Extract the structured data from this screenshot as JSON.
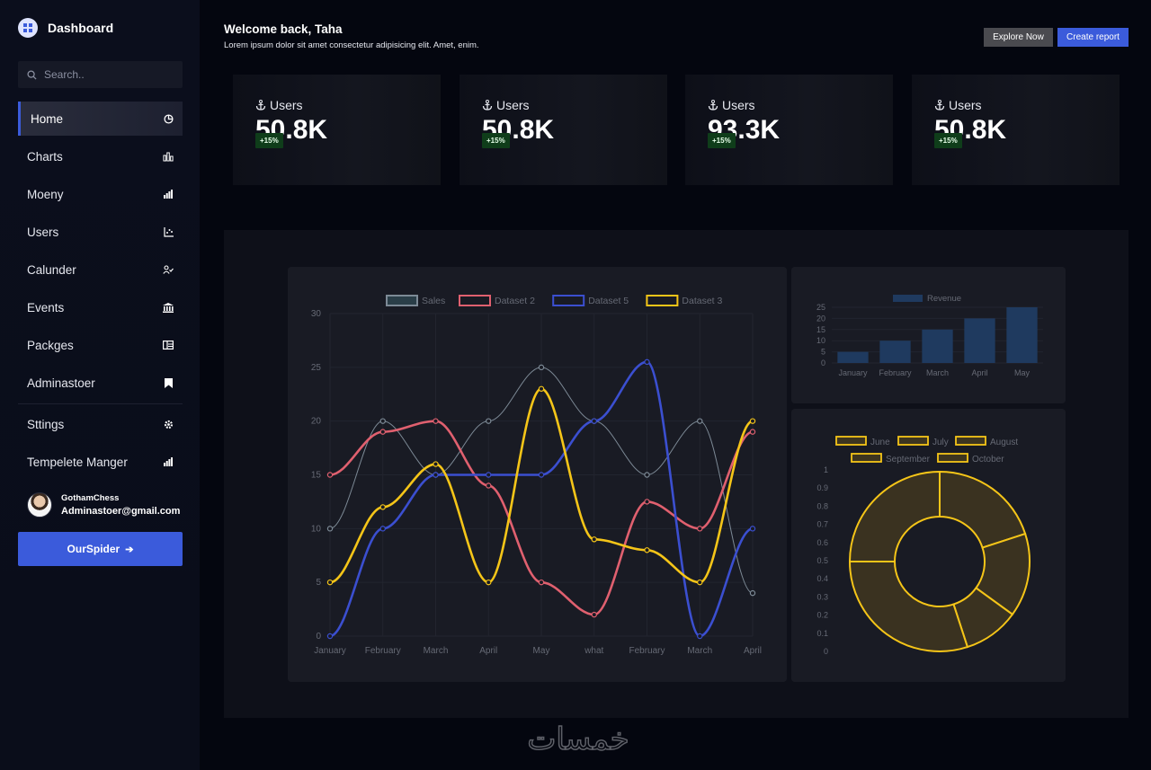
{
  "sidebar": {
    "brand": "Dashboard",
    "search_placeholder": "Search..",
    "items": [
      {
        "label": "Home",
        "icon": "pie-chart-icon"
      },
      {
        "label": "Charts",
        "icon": "bar-chart-icon"
      },
      {
        "label": "Moeny",
        "icon": "signal-bars-icon"
      },
      {
        "label": "Users",
        "icon": "scatter-chart-icon"
      },
      {
        "label": "Calunder",
        "icon": "user-check-icon"
      },
      {
        "label": "Events",
        "icon": "bank-icon"
      },
      {
        "label": "Packges",
        "icon": "table-icon"
      },
      {
        "label": "Adminastoer",
        "icon": "bookmark-icon"
      },
      {
        "label": "Sttings",
        "icon": "gear-icon"
      },
      {
        "label": "Tempelete Manger",
        "icon": "signal-bars-icon"
      }
    ],
    "profile": {
      "name": "GothamChess",
      "email": "Adminastoer@gmail.com"
    },
    "cta_label": "OurSpider"
  },
  "header": {
    "title": "Welcome back, Taha",
    "subtitle": "Lorem ipsum dolor sit amet consectetur adipisicing elit. Amet, enim.",
    "explore_label": "Explore Now",
    "report_label": "Create report"
  },
  "stats": [
    {
      "label": "Users",
      "value": "50.8K",
      "badge": "+15%"
    },
    {
      "label": "Users",
      "value": "50.8K",
      "badge": "+15%"
    },
    {
      "label": "Users",
      "value": "93.3K",
      "badge": "+15%"
    },
    {
      "label": "Users",
      "value": "50.8K",
      "badge": "+15%"
    }
  ],
  "colors": {
    "accent": "#3b5bdb",
    "badge_bg": "#0f3d1a",
    "red": "#e0606f",
    "yellow": "#f5c518",
    "gray": "#7d8a96"
  },
  "watermark": "خمسات",
  "chart_data": [
    {
      "type": "line",
      "categories": [
        "January",
        "February",
        "March",
        "April",
        "May",
        "what",
        "February",
        "March",
        "April"
      ],
      "ylim": [
        0,
        30
      ],
      "yticks": [
        0,
        5,
        10,
        15,
        20,
        25,
        30
      ],
      "legend": "top",
      "series": [
        {
          "name": "Sales",
          "color": "#7d8a96",
          "values": [
            10,
            20,
            15,
            20,
            25,
            20,
            15,
            20,
            4
          ]
        },
        {
          "name": "Dataset 2",
          "color": "#e0606f",
          "values": [
            15,
            19,
            20,
            14,
            5,
            2,
            12.5,
            10,
            19
          ]
        },
        {
          "name": "Dataset 5",
          "color": "#3b4fd0",
          "values": [
            0,
            10,
            15,
            15,
            15,
            20,
            25.5,
            0,
            10
          ]
        },
        {
          "name": "Dataset 3",
          "color": "#f5c518",
          "values": [
            5,
            12,
            16,
            5,
            23,
            9,
            8,
            5,
            20
          ]
        }
      ]
    },
    {
      "type": "bar",
      "categories": [
        "January",
        "February",
        "March",
        "April",
        "May"
      ],
      "ylim": [
        0,
        25
      ],
      "yticks": [
        0,
        5,
        10,
        15,
        20,
        25
      ],
      "legend": "top",
      "series": [
        {
          "name": "Revenue",
          "color": "#1f3a5f",
          "values": [
            5,
            10,
            15,
            20,
            25
          ]
        }
      ]
    },
    {
      "type": "pie",
      "donut": true,
      "categories": [
        "June",
        "July",
        "August",
        "September",
        "October"
      ],
      "values": [
        20,
        15,
        10,
        30,
        25
      ],
      "ylim": [
        0,
        1
      ],
      "yticks": [
        "0",
        "0.1",
        "0.2",
        "0.3",
        "0.4",
        "0.5",
        "0.6",
        "0.7",
        "0.8",
        "0.9",
        "1"
      ],
      "legend": "top",
      "color": "#f5c518"
    }
  ]
}
